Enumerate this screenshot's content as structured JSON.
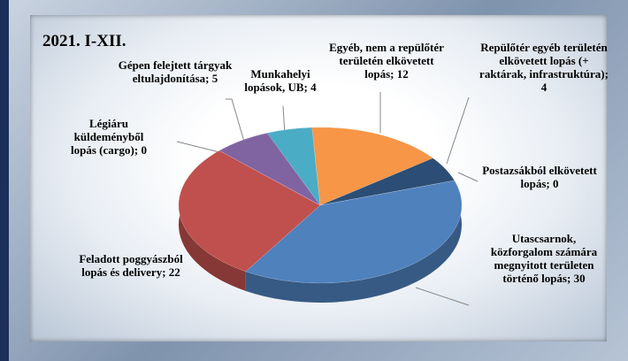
{
  "chart_data": {
    "type": "pie",
    "title": "2021. I-XII.",
    "categories": [
      "Munkahelyi lopások, UB",
      "Egyéb, nem a repülőtér területén elkövetett lopás",
      "Repülőtér egyéb területén elkövetett lopás (+ raktárak, infrastruktúra)",
      "Postazsákból elkövetett lopás",
      "Utascsarnok, közforgalom számára megnyitott területen történő lopás",
      "Feladott poggyászból lopás és delivery",
      "Légiáru küldeményből lopás (cargo)",
      "Gépen felejtett tárgyak eltulajdonítása"
    ],
    "values": [
      4,
      12,
      4,
      0,
      30,
      22,
      0,
      5
    ],
    "label_separator": "; ",
    "colors": [
      "#4bacc6",
      "#f79646",
      "#2c4d75",
      "#7f7f7f",
      "#4f81bd",
      "#c0504d",
      "#9bbb59",
      "#8064a2"
    ]
  }
}
